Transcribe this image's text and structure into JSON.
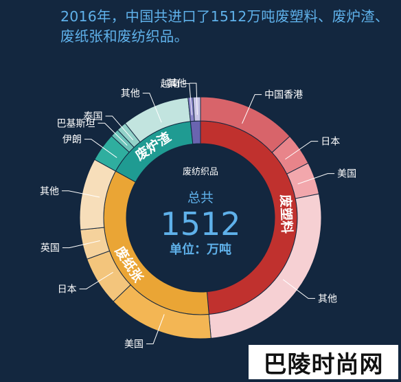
{
  "headline": "2016年，中国共进口了1512万吨废塑料、废炉渣、废纸张和废纺织品。",
  "watermark": "巴陵时尚网",
  "colors": {
    "background": "#13273f",
    "headline": "#5fb1ea",
    "center_text": "#5fb1ea"
  },
  "chart_data": {
    "type": "sunburst",
    "title": "",
    "center": {
      "label_top": "总共",
      "value": "1512",
      "unit": "单位：万吨"
    },
    "categories": [
      {
        "name": "废塑料",
        "value": 735,
        "color": "#c0312e",
        "children": [
          {
            "name": "中国香港",
            "value": 200,
            "color": "#d8646a"
          },
          {
            "name": "日本",
            "value": 65,
            "color": "#e8848a"
          },
          {
            "name": "美国",
            "value": 65,
            "color": "#f2a7ac"
          },
          {
            "name": "其他",
            "value": 405,
            "color": "#f6d0d3"
          }
        ]
      },
      {
        "name": "废纸张",
        "value": 520,
        "color": "#eaa535",
        "children": [
          {
            "name": "美国",
            "value": 215,
            "color": "#f3b654"
          },
          {
            "name": "日本",
            "value": 100,
            "color": "#f3c57c"
          },
          {
            "name": "英国",
            "value": 60,
            "color": "#f5d29c"
          },
          {
            "name": "其他",
            "value": 145,
            "color": "#f7deba"
          }
        ]
      },
      {
        "name": "废炉渣",
        "value": 232,
        "color": "#1f9b92",
        "children": [
          {
            "name": "伊朗",
            "value": 58,
            "color": "#2fae9f"
          },
          {
            "name": "巴基斯坦",
            "value": 17,
            "color": "#6cc3b9"
          },
          {
            "name": "泰国",
            "value": 20,
            "color": "#93d2c9"
          },
          {
            "name": "其他",
            "value": 137,
            "color": "#c2e4df"
          }
        ]
      },
      {
        "name": "废纺织品",
        "value": 25,
        "color": "#6a64b0",
        "children": [
          {
            "name": "越南",
            "value": 10,
            "color": "#8a84c8"
          },
          {
            "name": "其他",
            "value": 15,
            "color": "#c9c5e6"
          }
        ]
      }
    ]
  }
}
